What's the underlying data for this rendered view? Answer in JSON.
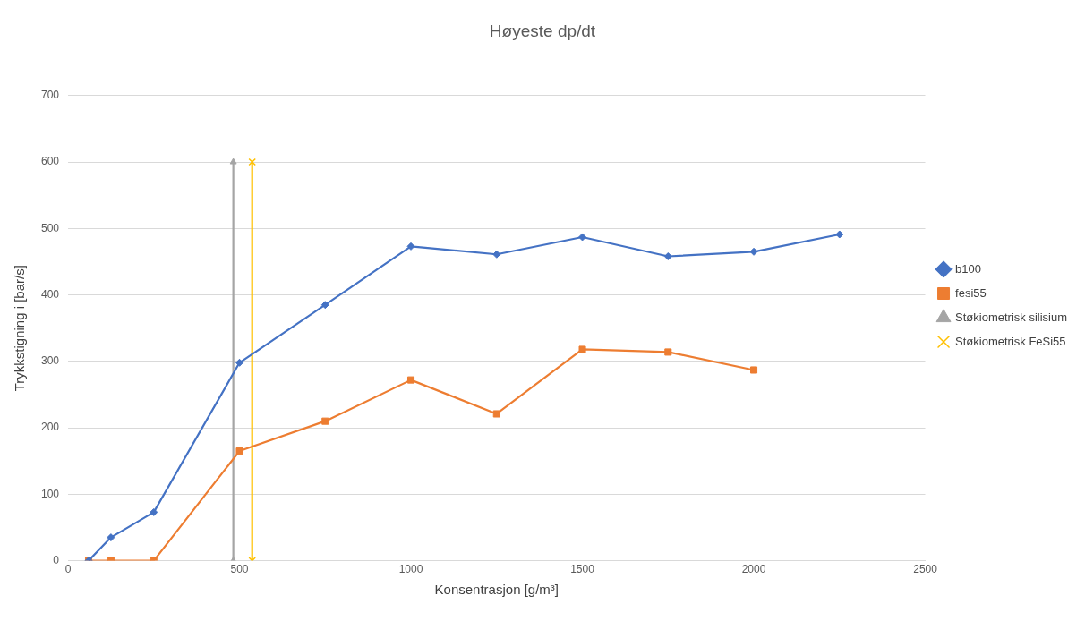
{
  "chart_data": {
    "type": "line",
    "title": "Høyeste dp/dt",
    "xlabel": "Konsentrasjon [g/m³]",
    "ylabel": "Trykkstigning i [bar/s]",
    "xlim": [
      0,
      2500
    ],
    "xticks": [
      0,
      500,
      1000,
      1500,
      2000,
      2500
    ],
    "ylim": [
      0,
      700
    ],
    "yticks": [
      0,
      100,
      200,
      300,
      400,
      500,
      600,
      700
    ],
    "grid": "y",
    "legend": "right",
    "series": [
      {
        "name": "b100",
        "color": "#4472c4",
        "marker": "diamond",
        "x": [
          60,
          125,
          250,
          500,
          750,
          1000,
          1250,
          1500,
          1750,
          2000,
          2250
        ],
        "values": [
          0,
          35,
          73,
          298,
          385,
          473,
          461,
          487,
          458,
          465,
          491
        ]
      },
      {
        "name": "fesi55",
        "color": "#ed7d31",
        "marker": "square",
        "x": [
          60,
          125,
          250,
          500,
          750,
          1000,
          1250,
          1500,
          1750,
          2000
        ],
        "values": [
          0,
          0,
          0,
          165,
          210,
          272,
          221,
          318,
          314,
          287
        ]
      },
      {
        "name": "Støkiometrisk silisium",
        "color": "#a5a5a5",
        "marker": "triangle",
        "x": [
          482,
          482
        ],
        "values": [
          0,
          600
        ]
      },
      {
        "name": "Støkiometrisk FeSi55",
        "color": "#ffc000",
        "marker": "cross",
        "x": [
          537,
          537
        ],
        "values": [
          0,
          600
        ]
      }
    ]
  }
}
